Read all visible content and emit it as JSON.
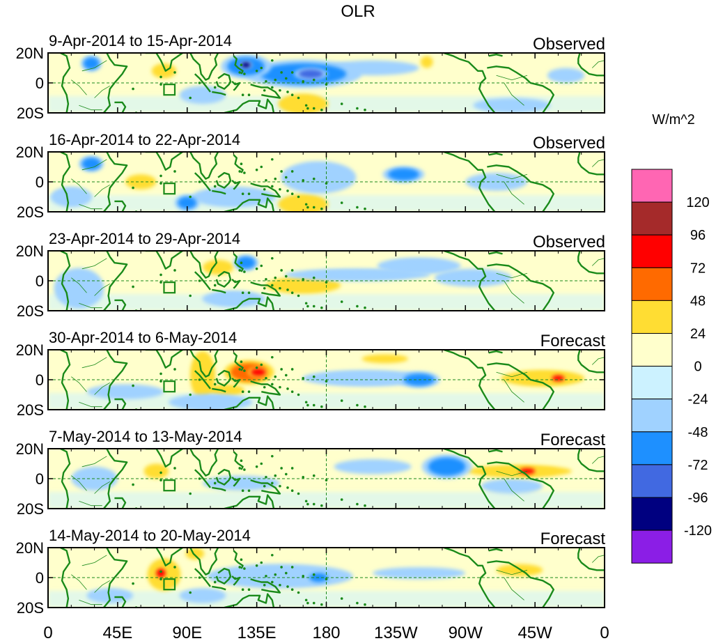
{
  "chart_data": {
    "type": "heatmap",
    "title": "OLR",
    "units_label": "W/m^2",
    "x_ticks": [
      {
        "lon": 0,
        "label": "0"
      },
      {
        "lon": 45,
        "label": "45E"
      },
      {
        "lon": 90,
        "label": "90E"
      },
      {
        "lon": 135,
        "label": "135E"
      },
      {
        "lon": 180,
        "label": "180"
      },
      {
        "lon": 225,
        "label": "135W"
      },
      {
        "lon": 270,
        "label": "90W"
      },
      {
        "lon": 315,
        "label": "45W"
      },
      {
        "lon": 360,
        "label": "0"
      }
    ],
    "y_ticks": [
      {
        "lat": 20,
        "label": "20N"
      },
      {
        "lat": 0,
        "label": "0"
      },
      {
        "lat": -20,
        "label": "20S"
      }
    ],
    "lon_range": [
      0,
      360
    ],
    "lat_range": [
      -20,
      20
    ],
    "colorbar": {
      "levels": [
        "120",
        "96",
        "72",
        "48",
        "24",
        "0",
        "-24",
        "-48",
        "-72",
        "-96",
        "-120"
      ],
      "colors": [
        "#ff66b3",
        "#a52a2a",
        "#ff0000",
        "#ff6a00",
        "#ffdd33",
        "#ffffcc",
        "#ccf2ff",
        "#a0d2ff",
        "#1e90ff",
        "#4169e1",
        "#000080",
        "#8b1ee6"
      ]
    },
    "panels": [
      {
        "date_range": "9-Apr-2014 to 15-Apr-2014",
        "type_label": "Observed",
        "anomalies": [
          {
            "lon": 28,
            "lat": 13,
            "rlon": 5,
            "rlat": 4,
            "value": -60
          },
          {
            "lon": 128,
            "lat": 11,
            "rlon": 12,
            "rlat": 6,
            "value": -70
          },
          {
            "lon": 128,
            "lat": 12,
            "rlon": 3,
            "rlat": 2,
            "value": -110
          },
          {
            "lon": 165,
            "lat": 6,
            "rlon": 28,
            "rlat": 7,
            "value": -55
          },
          {
            "lon": 170,
            "lat": 6,
            "rlon": 8,
            "rlat": 3,
            "value": -90
          },
          {
            "lon": 210,
            "lat": 10,
            "rlon": 30,
            "rlat": 5,
            "value": -30
          },
          {
            "lon": 75,
            "lat": 8,
            "rlon": 8,
            "rlat": 5,
            "value": 30
          },
          {
            "lon": 165,
            "lat": -14,
            "rlon": 12,
            "rlat": 5,
            "value": 35
          },
          {
            "lon": 100,
            "lat": -8,
            "rlon": 15,
            "rlat": 6,
            "value": -30
          },
          {
            "lon": 300,
            "lat": -15,
            "rlon": 25,
            "rlat": 5,
            "value": -30
          },
          {
            "lon": 245,
            "lat": 14,
            "rlon": 4,
            "rlat": 4,
            "value": 30
          },
          {
            "lon": 335,
            "lat": 5,
            "rlon": 12,
            "rlat": 5,
            "value": -30
          }
        ]
      },
      {
        "date_range": "16-Apr-2014 to 22-Apr-2014",
        "type_label": "Observed",
        "anomalies": [
          {
            "lon": 28,
            "lat": 12,
            "rlon": 6,
            "rlat": 4,
            "value": -55
          },
          {
            "lon": 90,
            "lat": -14,
            "rlon": 6,
            "rlat": 4,
            "value": -70
          },
          {
            "lon": 175,
            "lat": 3,
            "rlon": 18,
            "rlat": 8,
            "value": -45
          },
          {
            "lon": 165,
            "lat": -15,
            "rlon": 12,
            "rlat": 5,
            "value": 40
          },
          {
            "lon": 60,
            "lat": 0,
            "rlon": 10,
            "rlat": 5,
            "value": 30
          },
          {
            "lon": 230,
            "lat": 5,
            "rlon": 10,
            "rlat": 4,
            "value": -50
          },
          {
            "lon": 120,
            "lat": -10,
            "rlon": 20,
            "rlat": 5,
            "value": -40
          },
          {
            "lon": 290,
            "lat": 0,
            "rlon": 20,
            "rlat": 6,
            "value": -30
          },
          {
            "lon": 15,
            "lat": -10,
            "rlon": 10,
            "rlat": 5,
            "value": -35
          }
        ]
      },
      {
        "date_range": "23-Apr-2014 to 29-Apr-2014",
        "type_label": "Observed",
        "anomalies": [
          {
            "lon": 128,
            "lat": 12,
            "rlon": 6,
            "rlat": 4,
            "value": -55
          },
          {
            "lon": 165,
            "lat": -3,
            "rlon": 18,
            "rlat": 4,
            "value": 35
          },
          {
            "lon": 110,
            "lat": 9,
            "rlon": 10,
            "rlat": 5,
            "value": 30
          },
          {
            "lon": 200,
            "lat": 4,
            "rlon": 35,
            "rlat": 3,
            "value": -35
          },
          {
            "lon": 20,
            "lat": -5,
            "rlon": 12,
            "rlat": 10,
            "value": -35
          },
          {
            "lon": 120,
            "lat": -12,
            "rlon": 15,
            "rlat": 4,
            "value": -40
          },
          {
            "lon": 275,
            "lat": 2,
            "rlon": 25,
            "rlat": 6,
            "value": -30
          },
          {
            "lon": 240,
            "lat": 10,
            "rlon": 20,
            "rlat": 4,
            "value": -40
          }
        ]
      },
      {
        "date_range": "30-Apr-2014 to 6-May-2014",
        "type_label": "Forecast",
        "anomalies": [
          {
            "lon": 130,
            "lat": 5,
            "rlon": 12,
            "rlat": 6,
            "value": 50
          },
          {
            "lon": 136,
            "lat": 5,
            "rlon": 5,
            "rlat": 2.5,
            "value": 80
          },
          {
            "lon": 100,
            "lat": 3,
            "rlon": 6,
            "rlat": 12,
            "value": 35
          },
          {
            "lon": 115,
            "lat": -7,
            "rlon": 12,
            "rlat": 4,
            "value": 30
          },
          {
            "lon": 205,
            "lat": 1,
            "rlon": 30,
            "rlat": 4,
            "value": -45
          },
          {
            "lon": 240,
            "lat": 0,
            "rlon": 10,
            "rlat": 4,
            "value": -60
          },
          {
            "lon": 320,
            "lat": 1,
            "rlon": 20,
            "rlat": 4,
            "value": 40
          },
          {
            "lon": 330,
            "lat": 1,
            "rlon": 4,
            "rlat": 2,
            "value": 75
          },
          {
            "lon": 105,
            "lat": -15,
            "rlon": 20,
            "rlat": 4,
            "value": -45
          },
          {
            "lon": 50,
            "lat": -8,
            "rlon": 25,
            "rlat": 5,
            "value": -30
          },
          {
            "lon": 218,
            "lat": 14,
            "rlon": 15,
            "rlat": 3,
            "value": 30
          }
        ]
      },
      {
        "date_range": "7-May-2014 to 13-May-2014",
        "type_label": "Forecast",
        "anomalies": [
          {
            "lon": 258,
            "lat": 8,
            "rlon": 12,
            "rlat": 6,
            "value": -55
          },
          {
            "lon": 305,
            "lat": 5,
            "rlon": 25,
            "rlat": 3,
            "value": 40
          },
          {
            "lon": 310,
            "lat": 5,
            "rlon": 5,
            "rlat": 2,
            "value": 75
          },
          {
            "lon": 70,
            "lat": 5,
            "rlon": 8,
            "rlat": 5,
            "value": 30
          },
          {
            "lon": 300,
            "lat": -5,
            "rlon": 20,
            "rlat": 5,
            "value": -30
          },
          {
            "lon": 125,
            "lat": -3,
            "rlon": 25,
            "rlat": 5,
            "value": -30
          },
          {
            "lon": 210,
            "lat": 8,
            "rlon": 25,
            "rlat": 5,
            "value": -25
          },
          {
            "lon": 30,
            "lat": 0,
            "rlon": 15,
            "rlat": 8,
            "value": -30
          }
        ]
      },
      {
        "date_range": "14-May-2014 to 20-May-2014",
        "type_label": "Forecast",
        "anomalies": [
          {
            "lon": 75,
            "lat": 2,
            "rlon": 8,
            "rlat": 8,
            "value": 40
          },
          {
            "lon": 73,
            "lat": 3,
            "rlon": 3,
            "rlat": 3,
            "value": 80
          },
          {
            "lon": 175,
            "lat": 0,
            "rlon": 6,
            "rlat": 3,
            "value": -70
          },
          {
            "lon": 150,
            "lat": 1,
            "rlon": 35,
            "rlat": 6,
            "value": -35
          },
          {
            "lon": 95,
            "lat": 16,
            "rlon": 6,
            "rlat": 4,
            "value": 30
          },
          {
            "lon": 305,
            "lat": 5,
            "rlon": 15,
            "rlat": 4,
            "value": 30
          },
          {
            "lon": 240,
            "lat": 3,
            "rlon": 30,
            "rlat": 4,
            "value": -25
          },
          {
            "lon": 100,
            "lat": -12,
            "rlon": 15,
            "rlat": 5,
            "value": -30
          },
          {
            "lon": 40,
            "lat": -12,
            "rlon": 15,
            "rlat": 5,
            "value": -25
          }
        ]
      }
    ]
  }
}
